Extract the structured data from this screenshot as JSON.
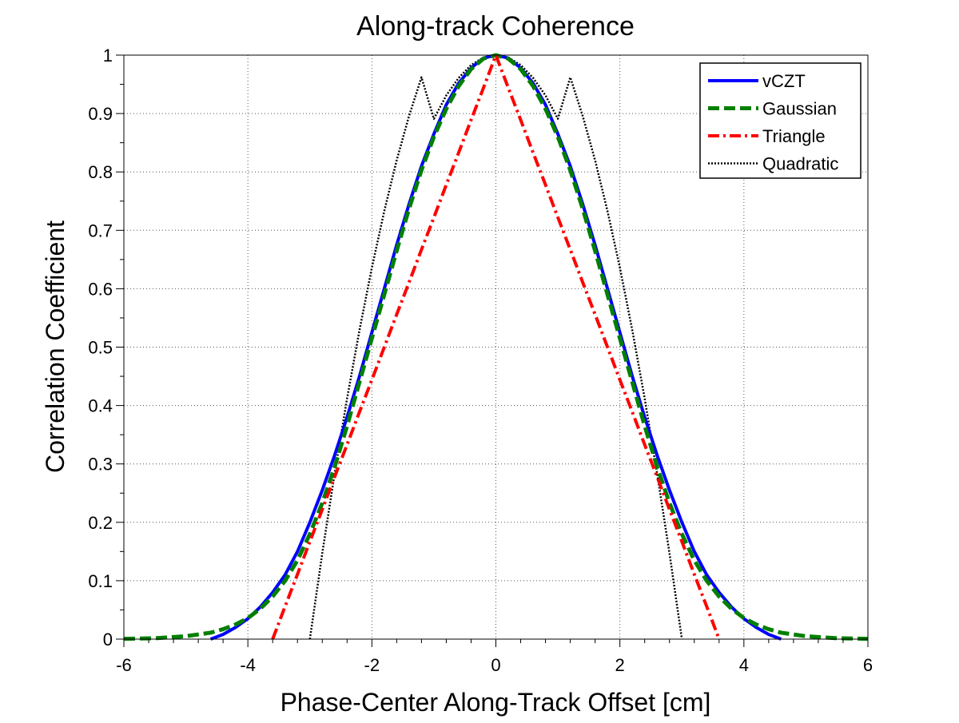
{
  "chart_data": {
    "type": "line",
    "title": "Along-track Coherence",
    "xlabel": "Phase-Center Along-Track Offset [cm]",
    "ylabel": "Correlation Coefficient",
    "xlim": [
      -6,
      6
    ],
    "ylim": [
      0,
      1
    ],
    "xticks": [
      -6,
      -4,
      -2,
      0,
      2,
      4,
      6
    ],
    "yticks": [
      0,
      0.1,
      0.2,
      0.3,
      0.4,
      0.5,
      0.6,
      0.7,
      0.8,
      0.9,
      1
    ],
    "xtick_labels": [
      "-6",
      "-4",
      "-2",
      "0",
      "2",
      "4",
      "6"
    ],
    "ytick_labels": [
      "0",
      "0.1",
      "0.2",
      "0.3",
      "0.4",
      "0.5",
      "0.6",
      "0.7",
      "0.8",
      "0.9",
      "1"
    ],
    "grid": true,
    "legend_position": "top-right",
    "x": [
      -6,
      -5.5,
      -5,
      -4.6,
      -4.4,
      -4.2,
      -4,
      -3.8,
      -3.6,
      -3.4,
      -3.2,
      -3,
      -2.8,
      -2.6,
      -2.4,
      -2.2,
      -2,
      -1.8,
      -1.6,
      -1.4,
      -1.2,
      -1,
      -0.8,
      -0.6,
      -0.4,
      -0.2,
      0,
      0.2,
      0.4,
      0.6,
      0.8,
      1,
      1.2,
      1.4,
      1.6,
      1.8,
      2,
      2.2,
      2.4,
      2.6,
      2.8,
      3,
      3.2,
      3.4,
      3.6,
      3.8,
      4,
      4.2,
      4.4,
      4.6,
      5,
      5.5,
      6
    ],
    "series": [
      {
        "name": "vCZT",
        "color": "#0000ff",
        "dash": "solid",
        "values": [
          null,
          null,
          null,
          0,
          0.008,
          0.02,
          0.035,
          0.055,
          0.08,
          0.11,
          0.15,
          0.2,
          0.255,
          0.315,
          0.38,
          0.45,
          0.525,
          0.6,
          0.675,
          0.745,
          0.81,
          0.865,
          0.915,
          0.952,
          0.978,
          0.995,
          1,
          0.995,
          0.978,
          0.952,
          0.915,
          0.865,
          0.81,
          0.745,
          0.675,
          0.6,
          0.525,
          0.45,
          0.38,
          0.315,
          0.255,
          0.2,
          0.15,
          0.11,
          0.08,
          0.055,
          0.035,
          0.02,
          0.008,
          0,
          null,
          null,
          null
        ]
      },
      {
        "name": "Gaussian",
        "color": "#008000",
        "dash": "dashed",
        "values": [
          0.0005,
          0.0015,
          0.005,
          0.011,
          0.017,
          0.025,
          0.036,
          0.052,
          0.073,
          0.1,
          0.135,
          0.18,
          0.233,
          0.295,
          0.365,
          0.44,
          0.515,
          0.59,
          0.665,
          0.737,
          0.803,
          0.86,
          0.908,
          0.947,
          0.976,
          0.994,
          1,
          0.994,
          0.976,
          0.947,
          0.908,
          0.86,
          0.803,
          0.737,
          0.665,
          0.59,
          0.515,
          0.44,
          0.365,
          0.295,
          0.233,
          0.18,
          0.135,
          0.1,
          0.073,
          0.052,
          0.036,
          0.025,
          0.017,
          0.011,
          0.005,
          0.0015,
          0.0005
        ]
      },
      {
        "name": "Triangle",
        "color": "#ff0000",
        "dash": "dashdot",
        "values": [
          null,
          null,
          null,
          null,
          null,
          null,
          null,
          null,
          0,
          0.056,
          0.111,
          0.167,
          0.222,
          0.278,
          0.333,
          0.389,
          0.444,
          0.5,
          0.556,
          0.611,
          0.667,
          0.722,
          0.778,
          0.833,
          0.889,
          0.944,
          1,
          0.944,
          0.889,
          0.833,
          0.778,
          0.722,
          0.667,
          0.611,
          0.556,
          0.5,
          0.444,
          0.389,
          0.333,
          0.278,
          0.222,
          0.167,
          0.111,
          0.056,
          0,
          null,
          null,
          null,
          null,
          null,
          null,
          null,
          null
        ]
      },
      {
        "name": "Quadratic",
        "color": "#000000",
        "dash": "dotted",
        "values": [
          null,
          null,
          null,
          null,
          null,
          null,
          null,
          null,
          null,
          null,
          null,
          0,
          0.147,
          0.284,
          0.412,
          0.529,
          0.636,
          0.733,
          0.82,
          0.896,
          0.962,
          0.891,
          0.931,
          0.961,
          0.983,
          0.996,
          1,
          0.996,
          0.983,
          0.961,
          0.931,
          0.891,
          0.962,
          0.896,
          0.82,
          0.733,
          0.636,
          0.529,
          0.412,
          0.284,
          0.147,
          0,
          null,
          null,
          null,
          null,
          null,
          null,
          null,
          null,
          null,
          null,
          null
        ]
      }
    ]
  }
}
